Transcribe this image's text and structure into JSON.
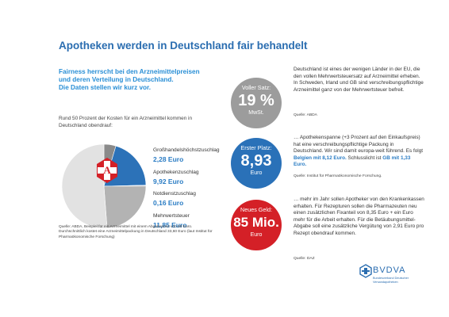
{
  "title": "Apotheken werden in Deutschland fair behandelt",
  "subhead": {
    "line1": "Fairness herrscht bei den Arzneimittelpreisen",
    "line2": "und deren Verteilung in Deutschland.",
    "line3": "Die Daten stellen wir kurz vor."
  },
  "intro": "Rund 50 Prozent der Kosten für ein Arzneimittel kommen in Deutschland obendrauf:",
  "pie_data": {
    "type": "pie",
    "slices": [
      {
        "label": "Großhandelshöchstzuschlag",
        "value": "2,28 Euro",
        "amount": 2.28,
        "color": "#8a8a8a"
      },
      {
        "label": "Apothekenzuschlag",
        "value": "9,92 Euro",
        "amount": 9.92,
        "color": "#2c72b8"
      },
      {
        "label": "Notdienstzuschlag",
        "value": "0,16 Euro",
        "amount": 0.16,
        "color": "#c8c8c8"
      },
      {
        "label": "Mehrwertsteuer",
        "value": "11,85 Euro",
        "amount": 11.85,
        "color": "#b3b3b3"
      }
    ],
    "remainder": {
      "amount": 25.39,
      "color": "#e2e2e2"
    }
  },
  "source_left": "Quelle: ABDA, Beispiel für ein Arzneimittel mit einem Abgabepreis von 50 Euro. Durchschnittlich kostet eine Arzneimittelpackung in Deutschland 33,60 Euro (laut Institut für Pharmaökonomische Forschung)",
  "stats": [
    {
      "top": "Voller Satz:",
      "big": "19 %",
      "bottom": "MwSt.",
      "color": "#9c9c9c",
      "text": "Deutschland ist eines der wenigen Länder in der EU, die den vollen Mehrwertsteuersatz auf Arzneimittel erheben. In Schweden, Irland und GB sind verschreibungspflichtige Arzneimittel ganz von der Mehrwertsteuer befreit.",
      "source": "Quelle: ABDA"
    },
    {
      "top": "Erster Platz:",
      "big": "8,93",
      "bottom": "Euro",
      "color": "#2a71b8",
      "text_a": "… Apothekenspanne (+3 Prozent auf den Einkaufspreis) hat eine verschreibungspflichtige Packung in Deutschland. Wir sind damit europa-weit führend. Es folgt ",
      "hl1": "Belgien mit 8,12 Euro.",
      "text_b": " Schlusslicht ist ",
      "hl2": "GB mit 1,33 Euro.",
      "source": "Quelle: Institut für Pharmaökonomische Forschung."
    },
    {
      "top": "Neues Geld:",
      "big": "85 Mio.",
      "bottom": "Euro",
      "color": "#d42027",
      "text": "… mehr im Jahr sollen Apotheker von den Krankenkassen erhalten. Für Rezepturen sollen die Pharmazeuten neu einen zusätzlichen Fixanteil von 8,35 Euro + ein Euro mehr für die Arbeit erhalten. Für die Betäubungsmittel-Abgabe soll eine zusätzliche Vergütung von 2,91 Euro pro Rezept obendrauf kommen.",
      "source": "Quelle: DAZ"
    }
  ],
  "logo": {
    "name": "BVDVA",
    "sub1": "Bundesverband Deutscher",
    "sub2": "Versandapotheken",
    "color": "#2a6db0"
  }
}
